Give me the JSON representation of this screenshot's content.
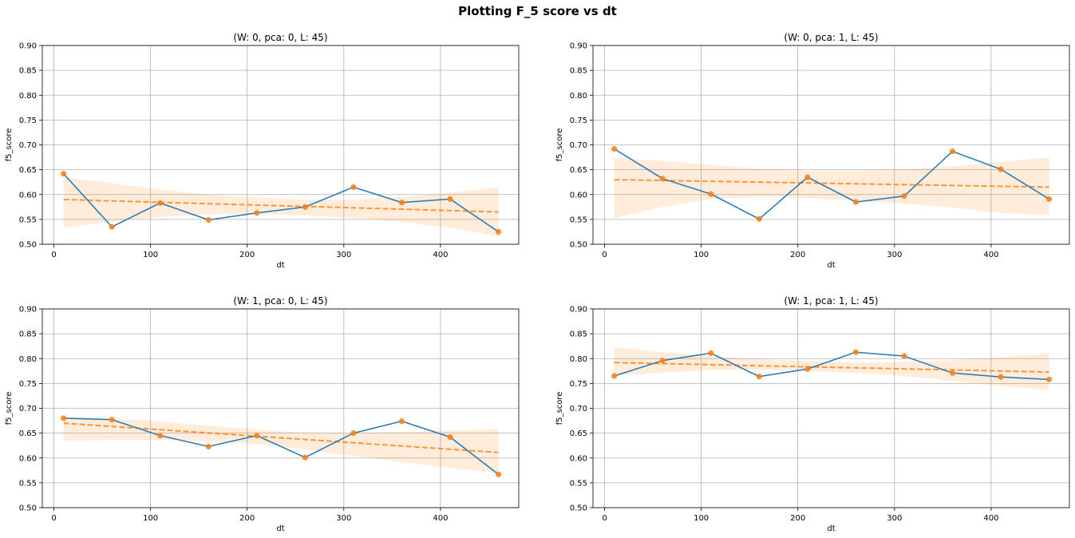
{
  "suptitle": "Plotting F_5 score vs dt",
  "colors": {
    "line": "#1f77b4",
    "marker": "#ff7f0e",
    "fit": "#ff7f0e",
    "band": "#ff7f0e",
    "grid": "#b0b0b0"
  },
  "chart_data": [
    {
      "type": "line",
      "title": "(W: 0, pca: 0, L: 45)",
      "xlabel": "dt",
      "ylabel": "f5_score",
      "xlim": [
        -12,
        481
      ],
      "ylim": [
        0.5,
        0.9
      ],
      "xticks": [
        0,
        100,
        200,
        300,
        400
      ],
      "yticks": [
        0.5,
        0.55,
        0.6,
        0.65,
        0.7,
        0.75,
        0.8,
        0.85,
        0.9
      ],
      "grid": true,
      "x": [
        10,
        60,
        110,
        160,
        210,
        260,
        310,
        360,
        410,
        460
      ],
      "y": [
        0.642,
        0.535,
        0.583,
        0.549,
        0.563,
        0.575,
        0.615,
        0.584,
        0.591,
        0.525
      ],
      "fit": {
        "y_start": 0.59,
        "y_end": 0.565
      },
      "band_lower": [
        0.533,
        0.546,
        0.555,
        0.56,
        0.561,
        0.558,
        0.553,
        0.545,
        0.533,
        0.516
      ],
      "band_upper": [
        0.635,
        0.623,
        0.61,
        0.6,
        0.594,
        0.59,
        0.59,
        0.595,
        0.604,
        0.614
      ]
    },
    {
      "type": "line",
      "title": "(W: 0, pca: 1, L: 45)",
      "xlabel": "dt",
      "ylabel": "f5_score",
      "xlim": [
        -12,
        481
      ],
      "ylim": [
        0.5,
        0.9
      ],
      "xticks": [
        0,
        100,
        200,
        300,
        400
      ],
      "yticks": [
        0.5,
        0.55,
        0.6,
        0.65,
        0.7,
        0.75,
        0.8,
        0.85,
        0.9
      ],
      "grid": true,
      "x": [
        10,
        60,
        110,
        160,
        210,
        260,
        310,
        360,
        410,
        460
      ],
      "y": [
        0.692,
        0.632,
        0.601,
        0.551,
        0.635,
        0.585,
        0.597,
        0.687,
        0.651,
        0.591
      ],
      "fit": {
        "y_start": 0.63,
        "y_end": 0.615
      },
      "band_lower": [
        0.553,
        0.575,
        0.591,
        0.596,
        0.593,
        0.588,
        0.582,
        0.574,
        0.563,
        0.559
      ],
      "band_upper": [
        0.673,
        0.668,
        0.66,
        0.652,
        0.648,
        0.648,
        0.651,
        0.657,
        0.666,
        0.675
      ]
    },
    {
      "type": "line",
      "title": "(W: 1, pca: 0, L: 45)",
      "xlabel": "dt",
      "ylabel": "f5_score",
      "xlim": [
        -12,
        481
      ],
      "ylim": [
        0.5,
        0.9
      ],
      "xticks": [
        0,
        100,
        200,
        300,
        400
      ],
      "yticks": [
        0.5,
        0.55,
        0.6,
        0.65,
        0.7,
        0.75,
        0.8,
        0.85,
        0.9
      ],
      "grid": true,
      "x": [
        10,
        60,
        110,
        160,
        210,
        260,
        310,
        360,
        410,
        460
      ],
      "y": [
        0.68,
        0.677,
        0.645,
        0.623,
        0.645,
        0.601,
        0.65,
        0.674,
        0.642,
        0.567
      ],
      "fit": {
        "y_start": 0.67,
        "y_end": 0.611
      },
      "band_lower": [
        0.635,
        0.636,
        0.636,
        0.634,
        0.628,
        0.617,
        0.604,
        0.592,
        0.58,
        0.57
      ],
      "band_upper": [
        0.682,
        0.68,
        0.674,
        0.665,
        0.657,
        0.651,
        0.65,
        0.652,
        0.655,
        0.658
      ]
    },
    {
      "type": "line",
      "title": "(W: 1, pca: 1, L: 45)",
      "xlabel": "dt",
      "ylabel": "f5_score",
      "xlim": [
        -12,
        481
      ],
      "ylim": [
        0.5,
        0.9
      ],
      "xticks": [
        0,
        100,
        200,
        300,
        400
      ],
      "yticks": [
        0.5,
        0.55,
        0.6,
        0.65,
        0.7,
        0.75,
        0.8,
        0.85,
        0.9
      ],
      "grid": true,
      "x": [
        10,
        60,
        110,
        160,
        210,
        260,
        310,
        360,
        410,
        460
      ],
      "y": [
        0.765,
        0.796,
        0.811,
        0.764,
        0.779,
        0.813,
        0.805,
        0.771,
        0.763,
        0.758
      ],
      "fit": {
        "y_start": 0.792,
        "y_end": 0.773
      },
      "band_lower": [
        0.765,
        0.772,
        0.777,
        0.778,
        0.775,
        0.771,
        0.765,
        0.755,
        0.745,
        0.737
      ],
      "band_upper": [
        0.823,
        0.813,
        0.805,
        0.799,
        0.795,
        0.793,
        0.793,
        0.797,
        0.803,
        0.81
      ]
    }
  ]
}
